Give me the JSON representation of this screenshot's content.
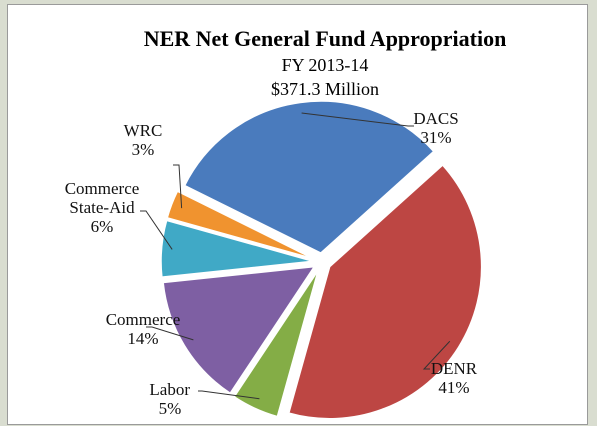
{
  "chart_data": {
    "type": "pie",
    "title": "NER Net General Fund Appropriation",
    "subtitle_lines": [
      "FY 2013-14",
      "$371.3 Million"
    ],
    "slices": [
      {
        "label": "DACS",
        "label_lines": [
          "DACS"
        ],
        "percent_text": "31%",
        "value": 31,
        "color": "#4a7bbd"
      },
      {
        "label": "DENR",
        "label_lines": [
          "DENR"
        ],
        "percent_text": "41%",
        "value": 41,
        "color": "#bd4643"
      },
      {
        "label": "Labor",
        "label_lines": [
          "Labor"
        ],
        "percent_text": "5%",
        "value": 5,
        "color": "#84ad46"
      },
      {
        "label": "Commerce",
        "label_lines": [
          "Commerce"
        ],
        "percent_text": "14%",
        "value": 14,
        "color": "#7e5fa3"
      },
      {
        "label": "Commerce State-Aid",
        "label_lines": [
          "Commerce",
          "State-Aid"
        ],
        "percent_text": "6%",
        "value": 6,
        "color": "#40a9c6"
      },
      {
        "label": "WRC",
        "label_lines": [
          "WRC"
        ],
        "percent_text": "3%",
        "value": 3,
        "color": "#f0932f"
      }
    ]
  }
}
